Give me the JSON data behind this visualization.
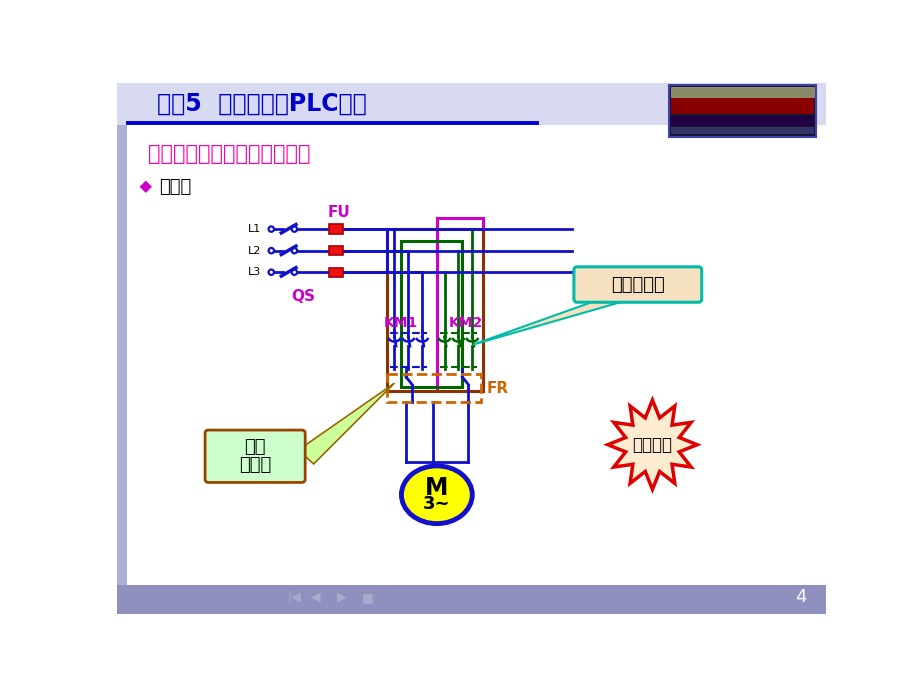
{
  "title": "项目5  数控机床的PLC控制",
  "subtitle": "实例二、电动机的正反转控制",
  "section": "主电路",
  "FU_label": "FU",
  "QS_label": "QS",
  "KM1_label": "KM1",
  "KM2_label": "KM2",
  "FR_label": "FR",
  "motor_top": "M",
  "motor_bot": "3~",
  "L_labels": [
    "L1",
    "L2",
    "L3"
  ],
  "note1": "反转接触器",
  "note2a": "正转",
  "note2b": "接触器",
  "note3": "注意调相",
  "page_num": "4",
  "bg": "#ffffff",
  "title_clr": "#0000cc",
  "sub_clr": "#ff00aa",
  "pu_clr": "#cc00cc",
  "blue": "#1111cc",
  "green": "#006600",
  "magenta": "#cc00cc",
  "brown": "#8b3300",
  "orange": "#cc6600",
  "red": "#dd0000",
  "hdr_bg": "#d8daf2",
  "ftr_bg": "#9090c0",
  "side_bg": "#aab0d8",
  "ann1_bg": "#f5e0c0",
  "ann1_edge": "#00bbaa",
  "ann2_bg": "#ccffcc",
  "ann2_edge": "#994400",
  "star_bg": "#fdecd0",
  "star_edge": "#dd0000"
}
